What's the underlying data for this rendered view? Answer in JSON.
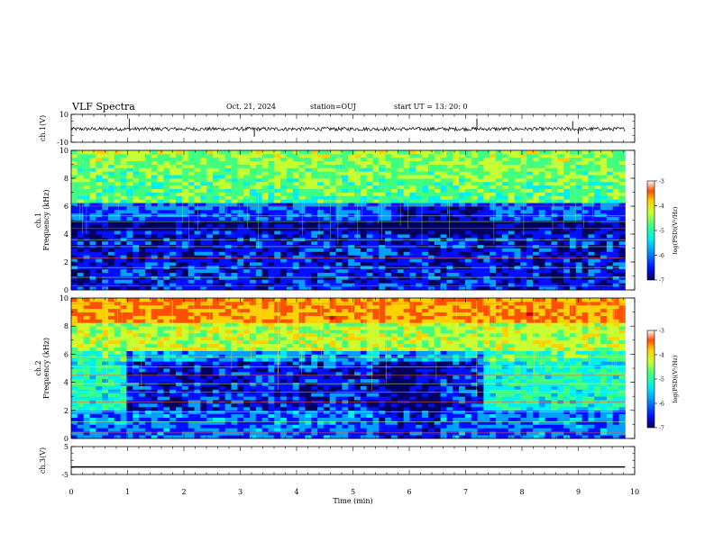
{
  "header": {
    "title": "VLF Spectra",
    "date": "Oct. 21, 2024",
    "station": "station=OUJ",
    "start_time": "start  UT =   13: 20: 0"
  },
  "colors": {
    "spectrogram_scale": [
      "#000060",
      "#0010ff",
      "#00a0ff",
      "#00f0f0",
      "#40ff80",
      "#c8ff30",
      "#ffd000",
      "#ff5000",
      "#d00000"
    ],
    "waveform": "#000000"
  },
  "chart_data": [
    {
      "type": "line",
      "panel": "ch1-waveform",
      "ylabel": "ch.1(V)",
      "ylim": [
        -10,
        10
      ],
      "yticks": [
        "10",
        "-10"
      ],
      "xlim": [
        0,
        10
      ],
      "baseline": -0.5,
      "spikes": [
        {
          "x": 1.03,
          "y": 7
        },
        {
          "x": 3.25,
          "y": -6
        },
        {
          "x": 7.2,
          "y": 7
        },
        {
          "x": 8.9,
          "y": 5
        },
        {
          "x": 9.0,
          "y": -4
        }
      ]
    },
    {
      "type": "heatmap",
      "panel": "ch1-spectrogram",
      "ylabel": "ch.1\nFrequency (kHz)",
      "ylim": [
        0,
        10
      ],
      "yticks": [
        "0",
        "2",
        "4",
        "6",
        "8",
        "10"
      ],
      "xlim": [
        0,
        10
      ],
      "xdata_extent": [
        0,
        9.83
      ],
      "colorbar": {
        "label": "log(PSD)(V²/Hz)",
        "range": [
          -7,
          -3
        ],
        "ticks": [
          "-3",
          "-4",
          "-5",
          "-6",
          "-7"
        ]
      }
    },
    {
      "type": "heatmap",
      "panel": "ch2-spectrogram",
      "ylabel": "ch.2\nFrequency (kHz)",
      "ylim": [
        0,
        10
      ],
      "yticks": [
        "0",
        "2",
        "4",
        "6",
        "8",
        "10"
      ],
      "xlim": [
        0,
        10
      ],
      "xdata_extent": [
        0,
        9.83
      ],
      "colorbar": {
        "label": "log(PSD)(V²/Hz)",
        "range": [
          -7,
          -3
        ],
        "ticks": [
          "-3",
          "-4",
          "-5",
          "-6",
          "-7"
        ]
      }
    },
    {
      "type": "line",
      "panel": "ch3-waveform",
      "ylabel": "ch.3(V)",
      "ylim": [
        -5,
        5
      ],
      "yticks": [
        "5",
        "-5"
      ],
      "xlim": [
        0,
        10
      ],
      "baseline": -2.3
    }
  ],
  "xaxis": {
    "label": "Time (min)",
    "ticks": [
      "0",
      "1",
      "2",
      "3",
      "4",
      "5",
      "6",
      "7",
      "8",
      "9",
      "10"
    ]
  }
}
